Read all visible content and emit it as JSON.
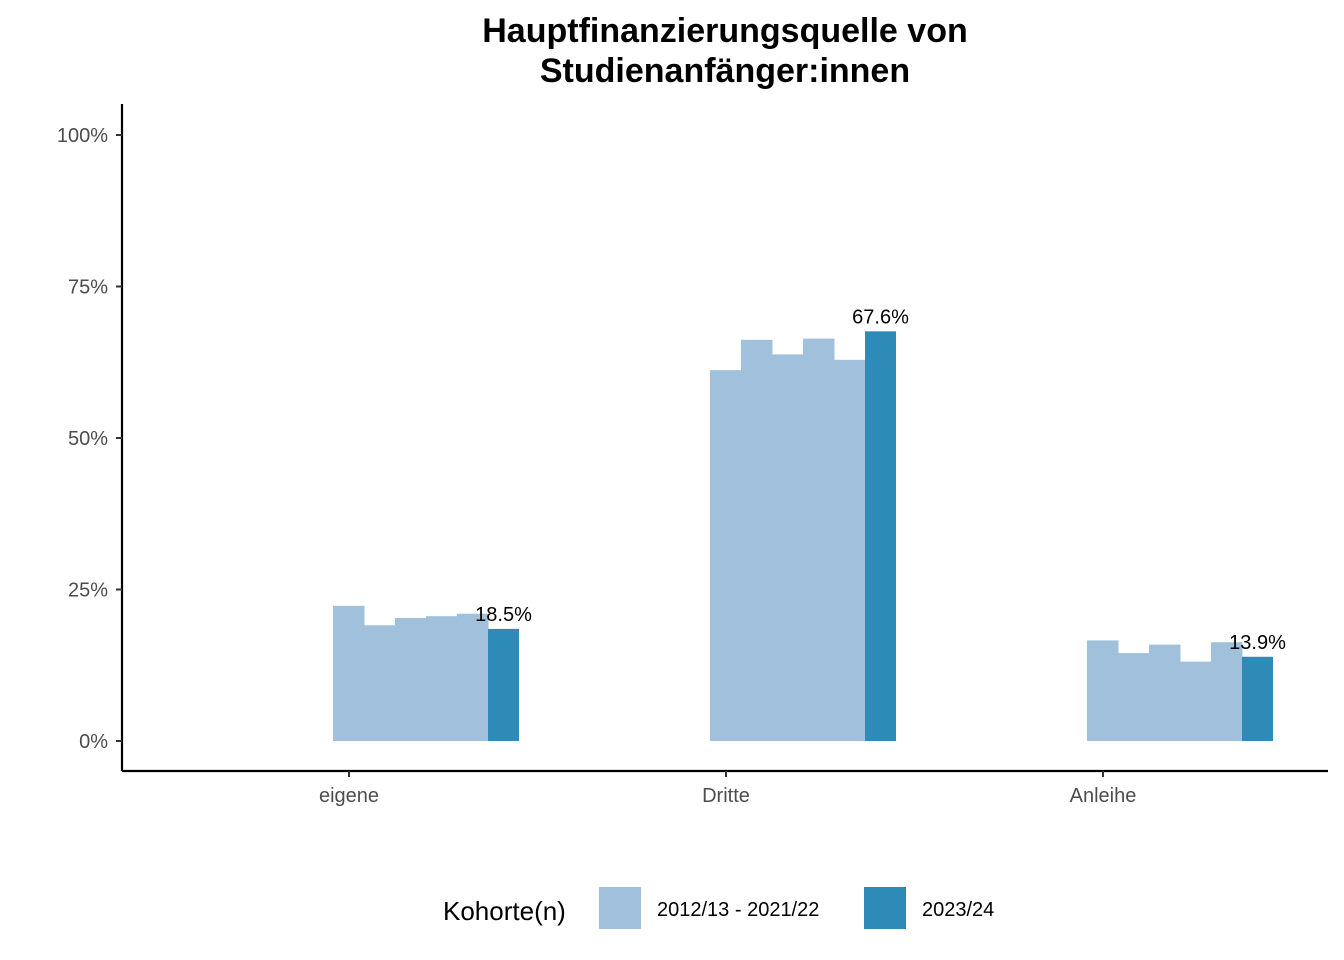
{
  "chart_data": {
    "type": "bar",
    "title_lines": [
      "Hauptfinanzierungsquelle von",
      "Studienanfänger:innen"
    ],
    "categories": [
      "eigene",
      "Dritte",
      "Anleihe"
    ],
    "ylim": [
      0,
      100
    ],
    "yticks": [
      0,
      25,
      50,
      75,
      100
    ],
    "ytick_labels": [
      "0%",
      "25%",
      "50%",
      "75%",
      "100%"
    ],
    "grid": false,
    "legend": {
      "title": "Kohorte(n)",
      "position": "bottom",
      "entries": [
        {
          "label": "2012/13 - 2021/22",
          "color": "#a0c0dc"
        },
        {
          "label": "2023/24",
          "color": "#2e8bb8"
        }
      ]
    },
    "series": [
      {
        "name": "2012/13 - 2021/22",
        "color": "#a0c0dc",
        "values": [
          [
            22.3,
            19.1,
            20.3,
            20.6,
            21.0
          ],
          [
            61.2,
            66.2,
            63.8,
            66.4,
            62.9
          ],
          [
            16.6,
            14.5,
            15.9,
            13.1,
            16.3
          ]
        ]
      },
      {
        "name": "2023/24",
        "color": "#2e8bb8",
        "values": [
          18.5,
          67.6,
          13.9
        ],
        "labels": [
          "18.5%",
          "67.6%",
          "13.9%"
        ]
      }
    ]
  }
}
